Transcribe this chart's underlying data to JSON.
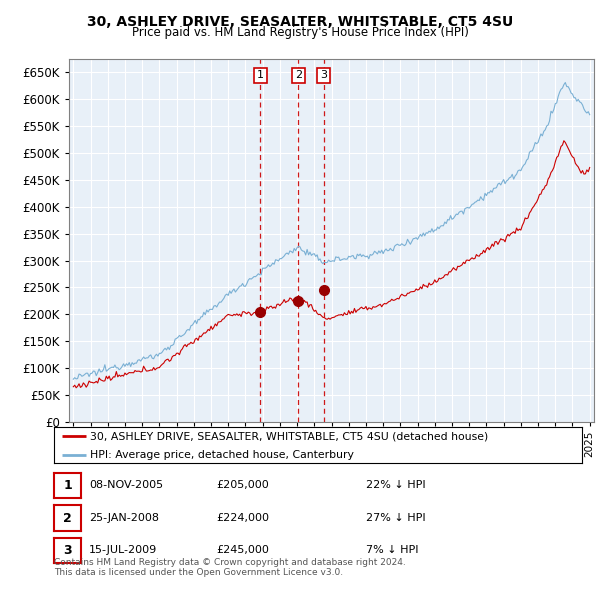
{
  "title1": "30, ASHLEY DRIVE, SEASALTER, WHITSTABLE, CT5 4SU",
  "title2": "Price paid vs. HM Land Registry's House Price Index (HPI)",
  "legend_entry1": "30, ASHLEY DRIVE, SEASALTER, WHITSTABLE, CT5 4SU (detached house)",
  "legend_entry2": "HPI: Average price, detached house, Canterbury",
  "sale_color": "#cc0000",
  "hpi_color": "#7ab0d4",
  "plot_bg_color": "#e8f0f8",
  "vline_color": "#cc0000",
  "marker_color": "#990000",
  "table_border_color": "#cc0000",
  "sales": [
    {
      "label": "1",
      "date_num": 2005.86,
      "price": 205000
    },
    {
      "label": "2",
      "date_num": 2008.07,
      "price": 224000
    },
    {
      "label": "3",
      "date_num": 2009.54,
      "price": 245000
    }
  ],
  "table_rows": [
    {
      "num": "1",
      "date": "08-NOV-2005",
      "price": "£205,000",
      "pct": "22% ↓ HPI"
    },
    {
      "num": "2",
      "date": "25-JAN-2008",
      "price": "£224,000",
      "pct": "27% ↓ HPI"
    },
    {
      "num": "3",
      "date": "15-JUL-2009",
      "price": "£245,000",
      "pct": "7% ↓ HPI"
    }
  ],
  "footer": "Contains HM Land Registry data © Crown copyright and database right 2024.\nThis data is licensed under the Open Government Licence v3.0.",
  "ylim": [
    0,
    675000
  ],
  "yticks": [
    0,
    50000,
    100000,
    150000,
    200000,
    250000,
    300000,
    350000,
    400000,
    450000,
    500000,
    550000,
    600000,
    650000
  ],
  "xlim_start": 1994.75,
  "xlim_end": 2025.25
}
